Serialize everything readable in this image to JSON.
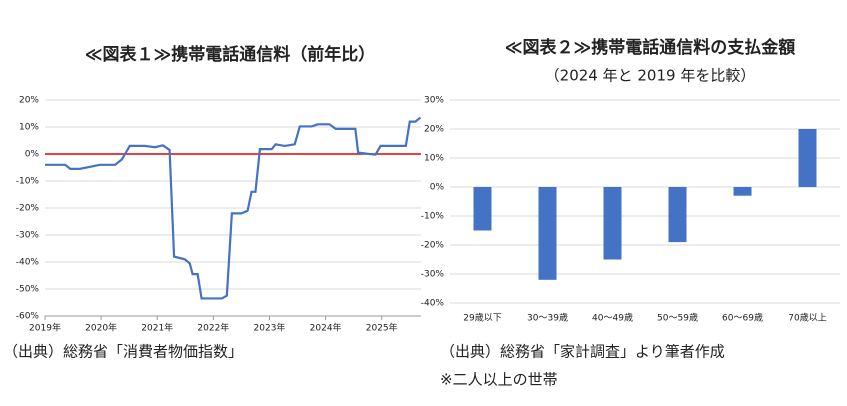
{
  "chart_data": [
    {
      "type": "line",
      "title": "≪図表１≫携帯電話通信料（前年比）",
      "source": "（出典）総務省「消費者物価指数」",
      "x": [
        2019.0,
        2019.36,
        2019.45,
        2019.62,
        2019.98,
        2020.25,
        2020.37,
        2020.51,
        2020.78,
        2020.96,
        2021.1,
        2021.22,
        2021.3,
        2021.49,
        2021.58,
        2021.63,
        2021.72,
        2021.79,
        2022.15,
        2022.24,
        2022.33,
        2022.5,
        2022.61,
        2022.68,
        2022.75,
        2022.83,
        2023.04,
        2023.11,
        2023.27,
        2023.45,
        2023.54,
        2023.75,
        2023.86,
        2024.07,
        2024.18,
        2024.53,
        2024.58,
        2024.78,
        2024.89,
        2024.98,
        2025.18,
        2025.43,
        2025.5,
        2025.6,
        2025.69
      ],
      "series": [
        {
          "name": "携帯電話通信料",
          "color": "#4472c4",
          "values": [
            -4,
            -4,
            -5.5,
            -5.5,
            -4,
            -4,
            -2,
            3,
            3,
            2.5,
            3.2,
            1.5,
            -38,
            -39,
            -40.5,
            -44.5,
            -44.5,
            -53.5,
            -53.5,
            -52.5,
            -22,
            -22,
            -21,
            -14,
            -14,
            1.8,
            1.8,
            3.6,
            3,
            3.6,
            10.2,
            10.2,
            11,
            11,
            9.3,
            9.3,
            0.5,
            0,
            -0.2,
            3,
            3,
            3,
            12,
            12,
            13.5
          ]
        }
      ],
      "xlim": [
        2019,
        2025.7
      ],
      "xticks": [
        {
          "value": 2019,
          "label": "2019年"
        },
        {
          "value": 2020,
          "label": "2020年"
        },
        {
          "value": 2021,
          "label": "2021年"
        },
        {
          "value": 2022,
          "label": "2022年"
        },
        {
          "value": 2023,
          "label": "2023年"
        },
        {
          "value": 2024,
          "label": "2024年"
        },
        {
          "value": 2025,
          "label": "2025年"
        }
      ],
      "ylim": [
        -60,
        20
      ],
      "yticks": [
        {
          "value": -60,
          "label": "-60%"
        },
        {
          "value": -50,
          "label": "-50%"
        },
        {
          "value": -40,
          "label": "-40%"
        },
        {
          "value": -30,
          "label": "-30%"
        },
        {
          "value": -20,
          "label": "-20%"
        },
        {
          "value": -10,
          "label": "-10%"
        },
        {
          "value": 0,
          "label": "0%"
        },
        {
          "value": 10,
          "label": "10%"
        },
        {
          "value": 20,
          "label": "20%"
        }
      ],
      "grid": true,
      "reference_line": {
        "value": 0,
        "color": "#e00000"
      }
    },
    {
      "type": "bar",
      "title": "≪図表２≫携帯電話通信料の支払金額",
      "subtitle": "（2024 年と 2019 年を比較）",
      "source": "（出典）総務省「家計調査」より筆者作成",
      "note": "※二人以上の世帯",
      "categories": [
        "29歳以下",
        "30～39歳",
        "40～49歳",
        "50～59歳",
        "60～69歳",
        "70歳以上"
      ],
      "values": [
        -15,
        -32,
        -25,
        -19,
        -3,
        20
      ],
      "color": "#4472c4",
      "ylim": [
        -40,
        30
      ],
      "yticks": [
        {
          "value": -40,
          "label": "-40%"
        },
        {
          "value": -30,
          "label": "-30%"
        },
        {
          "value": -20,
          "label": "-20%"
        },
        {
          "value": -10,
          "label": "-10%"
        },
        {
          "value": 0,
          "label": "0%"
        },
        {
          "value": 10,
          "label": "10%"
        },
        {
          "value": 20,
          "label": "20%"
        },
        {
          "value": 30,
          "label": "30%"
        }
      ],
      "grid": true
    }
  ]
}
